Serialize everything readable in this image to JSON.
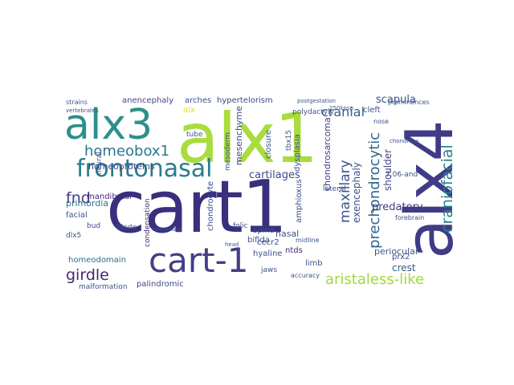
{
  "words": [
    "cart1",
    "alx1",
    "alx4",
    "alx3",
    "cart-1",
    "frontonasal",
    "aristaless-like",
    "craniofacial",
    "prechondrocytic",
    "homeobox1",
    "cranial",
    "fnd",
    "girdle",
    "maxillary",
    "homeoproteins",
    "cartilages",
    "scapula",
    "predatory",
    "exencephaly",
    "shoulder",
    "crest",
    "homeodomain",
    "periocular",
    "chondrosarcoma",
    "mesenchyme",
    "primordia",
    "hypertelorism",
    "amphioxus",
    "mandibular",
    "anencephaly",
    "alx",
    "chondrocyte",
    "facial",
    "nasal",
    "ntds",
    "bud",
    "condensation",
    "spina",
    "palindromic",
    "malformation",
    "cecr2",
    "limb",
    "neural",
    "arches",
    "bifida",
    "hyaline",
    "closure",
    "dysplasia",
    "tbx15",
    "polydactyly",
    "cleft",
    "prx2",
    "dlx5",
    "lateral",
    "tube",
    "blade",
    "folic",
    "mesoderm",
    "7.06-and",
    "forebrain",
    "accuracy",
    "prominences",
    "strains",
    "vertebrates",
    "nose",
    "midline",
    "head",
    "chondrons",
    "postgestation",
    "250knsp",
    "jaws",
    "homeobox"
  ]
}
